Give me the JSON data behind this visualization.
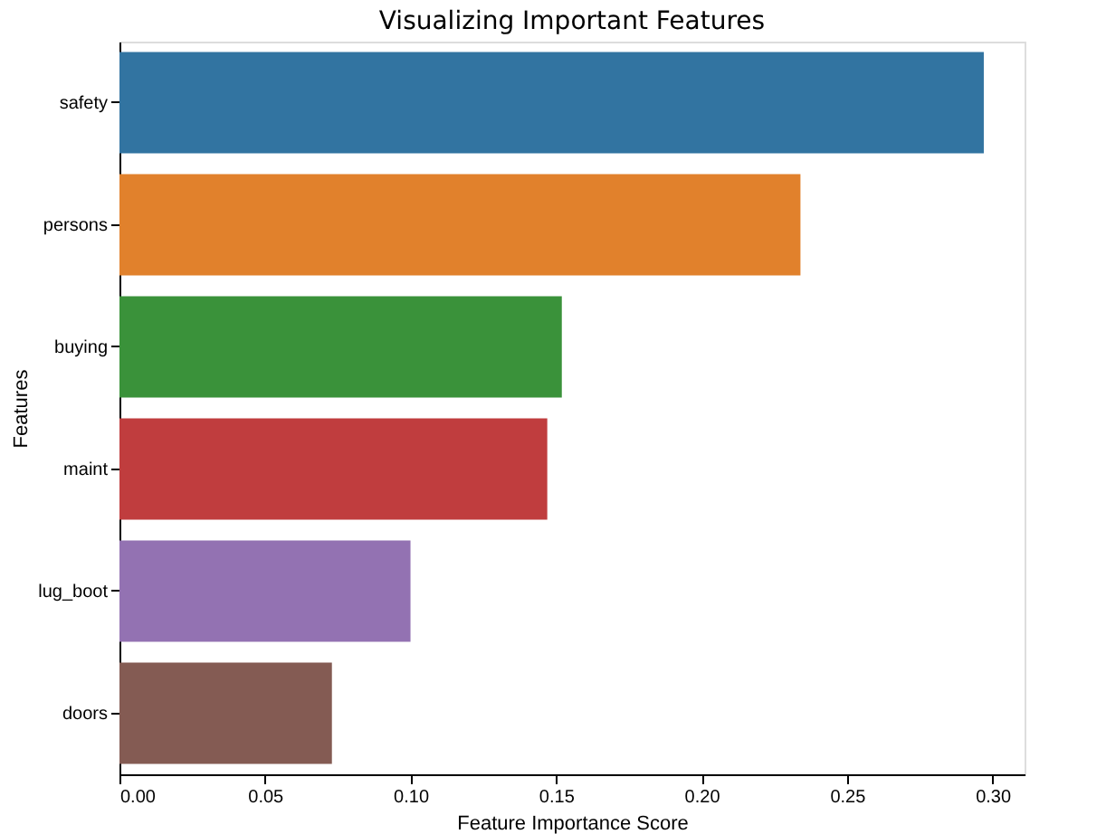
{
  "chart_data": {
    "type": "bar",
    "orientation": "horizontal",
    "title": "Visualizing Important Features",
    "xlabel": "Feature Importance Score",
    "ylabel": "Features",
    "categories": [
      "safety",
      "persons",
      "buying",
      "maint",
      "lug_boot",
      "doors"
    ],
    "values": [
      0.297,
      0.234,
      0.152,
      0.147,
      0.1,
      0.073
    ],
    "colors": [
      "#3274a1",
      "#e1812c",
      "#3a923a",
      "#c03d3e",
      "#9372b2",
      "#845b53"
    ],
    "xlim": [
      0,
      0.311
    ],
    "xticks": [
      {
        "value": 0,
        "label": "0.00"
      },
      0.05,
      {
        "value": 0.1,
        "label": "0.10"
      },
      0.15,
      {
        "value": 0.2,
        "label": "0.20"
      },
      0.25,
      {
        "value": 0.3,
        "label": "0.30"
      }
    ],
    "grid": false,
    "legend": false
  }
}
